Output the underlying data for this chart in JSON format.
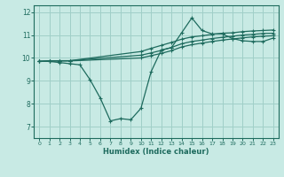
{
  "background_color": "#c8eae4",
  "grid_color": "#a0cfc8",
  "line_color": "#1e6b5e",
  "xlabel": "Humidex (Indice chaleur)",
  "ylim": [
    6.5,
    12.3
  ],
  "xlim": [
    -0.5,
    23.5
  ],
  "yticks": [
    7,
    8,
    9,
    10,
    11,
    12
  ],
  "xticks": [
    0,
    1,
    2,
    3,
    4,
    5,
    6,
    7,
    8,
    9,
    10,
    11,
    12,
    13,
    14,
    15,
    16,
    17,
    18,
    19,
    20,
    21,
    22,
    23
  ],
  "curves": [
    {
      "x": [
        0,
        1,
        2,
        3,
        4,
        5,
        6,
        7,
        8,
        9,
        10,
        11,
        12,
        13,
        14,
        15,
        16,
        17,
        18,
        19,
        20,
        21,
        22,
        23
      ],
      "y": [
        9.85,
        9.85,
        9.8,
        9.75,
        9.7,
        9.05,
        8.25,
        7.25,
        7.35,
        7.3,
        7.8,
        9.4,
        10.35,
        10.45,
        11.1,
        11.75,
        11.2,
        11.05,
        11.05,
        10.85,
        10.75,
        10.72,
        10.72,
        10.87
      ]
    },
    {
      "x": [
        0,
        1,
        2,
        3,
        10,
        11,
        12,
        13,
        14,
        15,
        16,
        17,
        18,
        19,
        20,
        21,
        22,
        23
      ],
      "y": [
        9.85,
        9.87,
        9.87,
        9.87,
        10.0,
        10.1,
        10.2,
        10.32,
        10.48,
        10.58,
        10.65,
        10.72,
        10.78,
        10.83,
        10.88,
        10.92,
        10.95,
        10.97
      ]
    },
    {
      "x": [
        0,
        1,
        2,
        3,
        10,
        11,
        12,
        13,
        14,
        15,
        16,
        17,
        18,
        19,
        20,
        21,
        22,
        23
      ],
      "y": [
        9.85,
        9.87,
        9.88,
        9.88,
        10.12,
        10.22,
        10.33,
        10.46,
        10.62,
        10.72,
        10.78,
        10.85,
        10.9,
        10.95,
        11.0,
        11.03,
        11.07,
        11.08
      ]
    },
    {
      "x": [
        0,
        1,
        2,
        3,
        10,
        11,
        12,
        13,
        14,
        15,
        16,
        17,
        18,
        19,
        20,
        21,
        22,
        23
      ],
      "y": [
        9.85,
        9.87,
        9.88,
        9.88,
        10.28,
        10.42,
        10.55,
        10.68,
        10.82,
        10.92,
        10.97,
        11.03,
        11.08,
        11.1,
        11.15,
        11.18,
        11.2,
        11.22
      ]
    }
  ]
}
